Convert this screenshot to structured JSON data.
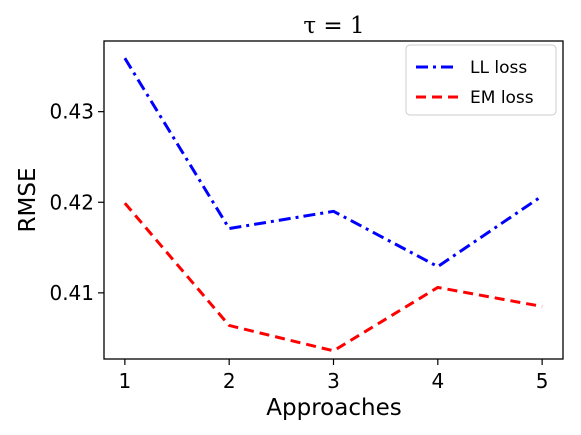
{
  "chart_data": {
    "type": "line",
    "title": "τ = 1",
    "xlabel": "Approaches",
    "ylabel": "RMSE",
    "x": [
      1,
      2,
      3,
      4,
      5
    ],
    "xlim": [
      0.8,
      5.2
    ],
    "ylim": [
      0.4027,
      0.4378
    ],
    "xticks": [
      1,
      2,
      3,
      4,
      5
    ],
    "xtick_labels": [
      "1",
      "2",
      "3",
      "4",
      "5"
    ],
    "yticks": [
      0.41,
      0.42,
      0.43
    ],
    "ytick_labels": [
      "0.41",
      "0.42",
      "0.43"
    ],
    "grid": false,
    "legend_position": "top-right",
    "series": [
      {
        "name": "LL loss",
        "values": [
          0.4359,
          0.4171,
          0.419,
          0.4129,
          0.4207
        ],
        "color": "#0000ff",
        "style": "dashdot"
      },
      {
        "name": "EM loss",
        "values": [
          0.4199,
          0.4064,
          0.4036,
          0.4106,
          0.4085
        ],
        "color": "#ff0000",
        "style": "dashed"
      }
    ]
  }
}
